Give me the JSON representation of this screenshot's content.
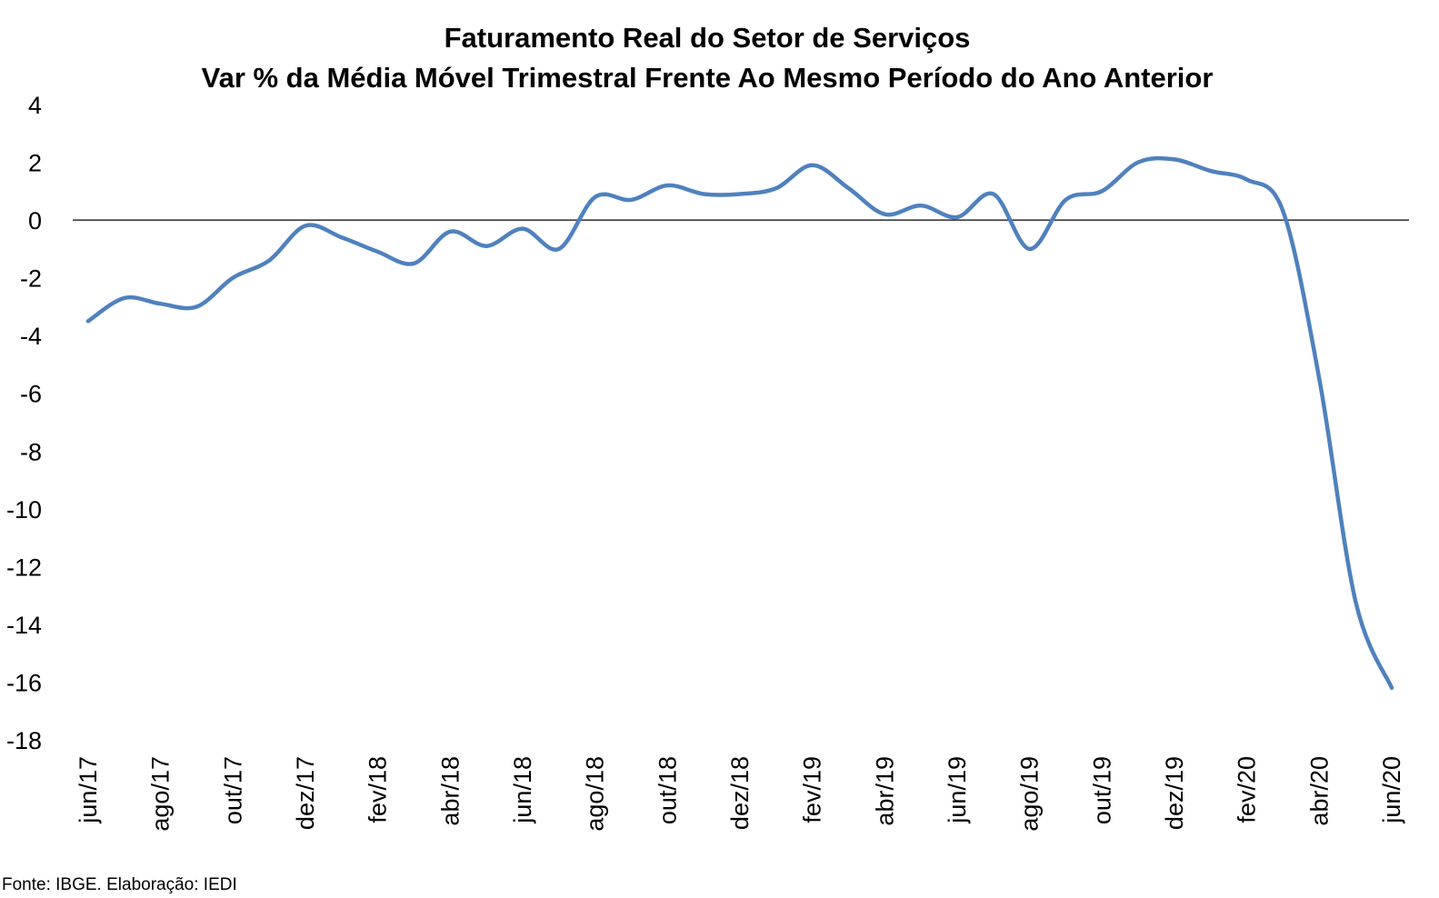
{
  "chart_data": {
    "type": "line",
    "title": "Faturamento Real do Setor de Serviços",
    "subtitle": "Var % da Média Móvel Trimestral Frente Ao Mesmo Período do Ano Anterior",
    "xlabel": "",
    "ylabel": "",
    "ylim": [
      -18,
      4
    ],
    "yticks": [
      4,
      2,
      0,
      -2,
      -4,
      -6,
      -8,
      -10,
      -12,
      -14,
      -16,
      -18
    ],
    "x_tick_labels": [
      "jun/17",
      "ago/17",
      "out/17",
      "dez/17",
      "fev/18",
      "abr/18",
      "jun/18",
      "ago/18",
      "out/18",
      "dez/18",
      "fev/19",
      "abr/19",
      "jun/19",
      "ago/19",
      "out/19",
      "dez/19",
      "fev/20",
      "abr/20",
      "jun/20"
    ],
    "categories": [
      "jun/17",
      "jul/17",
      "ago/17",
      "set/17",
      "out/17",
      "nov/17",
      "dez/17",
      "jan/18",
      "fev/18",
      "mar/18",
      "abr/18",
      "mai/18",
      "jun/18",
      "jul/18",
      "ago/18",
      "set/18",
      "out/18",
      "nov/18",
      "dez/18",
      "jan/19",
      "fev/19",
      "mar/19",
      "abr/19",
      "mai/19",
      "jun/19",
      "jul/19",
      "ago/19",
      "set/19",
      "out/19",
      "nov/19",
      "dez/19",
      "jan/20",
      "fev/20",
      "mar/20",
      "abr/20",
      "mai/20",
      "jun/20"
    ],
    "series": [
      {
        "values": [
          -3.5,
          -2.7,
          -2.9,
          -3.0,
          -2.0,
          -1.4,
          -0.2,
          -0.6,
          -1.1,
          -1.5,
          -0.4,
          -0.9,
          -0.3,
          -1.0,
          0.8,
          0.7,
          1.2,
          0.9,
          0.9,
          1.1,
          1.9,
          1.1,
          0.2,
          0.5,
          0.1,
          0.9,
          -1.0,
          0.7,
          1.0,
          2.0,
          2.1,
          1.7,
          1.4,
          0.3,
          -5.5,
          -13.2,
          -16.2
        ],
        "color": "#4F81BD"
      }
    ],
    "zero_line": true,
    "grid": false,
    "legend": "none"
  },
  "source": "Fonte: IBGE. Elaboração: IEDI"
}
